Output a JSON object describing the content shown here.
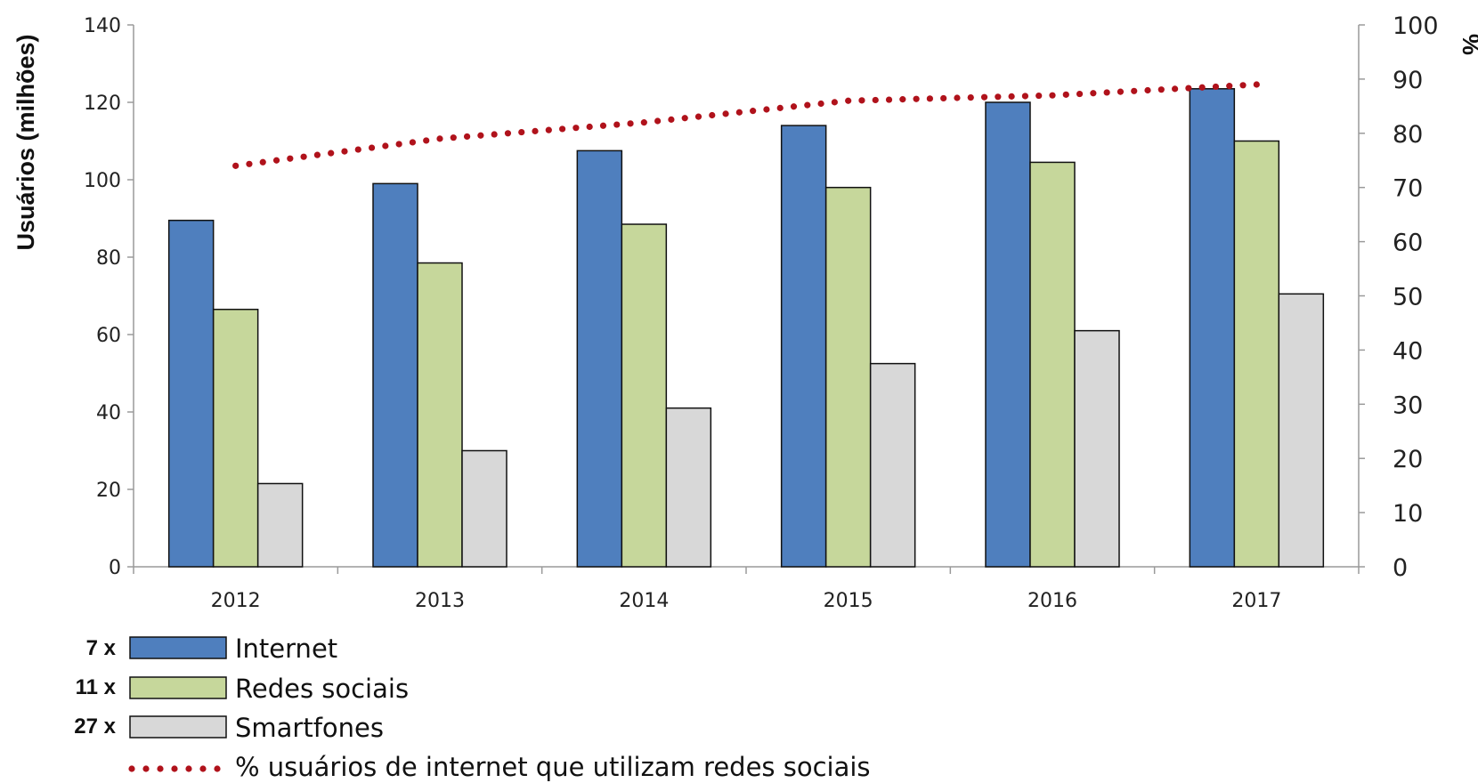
{
  "chart_data": {
    "type": "bar",
    "categories": [
      "2012",
      "2013",
      "2014",
      "2015",
      "2016",
      "2017"
    ],
    "series": [
      {
        "name": "Internet",
        "axis": "left",
        "color": "#4f7fbe",
        "values": [
          89.5,
          99,
          107.5,
          114,
          120,
          123.5
        ],
        "multiplier": "7 x"
      },
      {
        "name": "Redes sociais",
        "axis": "left",
        "color": "#c6d79b",
        "values": [
          66.5,
          78.5,
          88.5,
          98,
          104.5,
          110
        ],
        "multiplier": "11 x"
      },
      {
        "name": "Smartfones",
        "axis": "left",
        "color": "#d8d8d8",
        "values": [
          21.5,
          30,
          41,
          52.5,
          61,
          70.5
        ],
        "multiplier": "27 x"
      }
    ],
    "line_series": {
      "name": "% usuários de internet que utilizam redes sociais",
      "axis": "right",
      "style": "dotted",
      "color": "#b0121b",
      "values": [
        74,
        79,
        82,
        86,
        87,
        89
      ]
    },
    "ylabel_left": "Usuários (milhões)",
    "ylabel_right": "%",
    "ylim_left": [
      0,
      140
    ],
    "yticks_left": [
      0,
      20,
      40,
      60,
      80,
      100,
      120,
      140
    ],
    "ylim_right": [
      0,
      100
    ],
    "yticks_right": [
      0,
      10,
      20,
      30,
      40,
      50,
      60,
      70,
      80,
      90,
      100
    ],
    "grid": false,
    "legend_position": "bottom-left"
  }
}
